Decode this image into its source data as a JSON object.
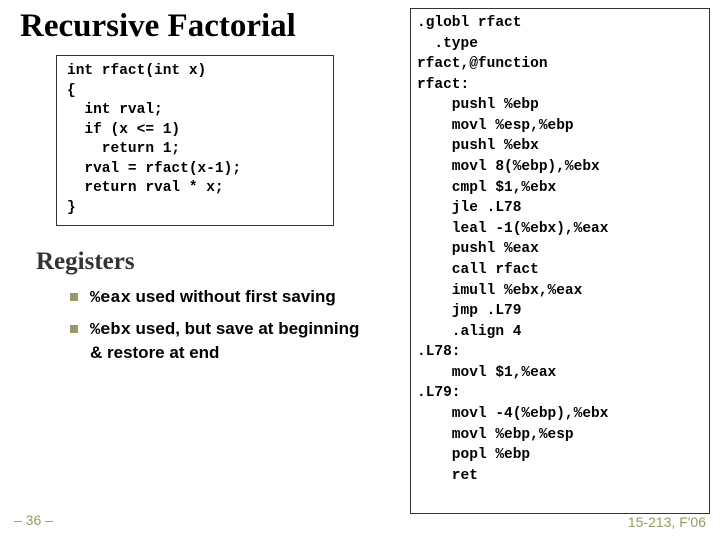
{
  "title": "Recursive Factorial",
  "c_code": "int rfact(int x)\n{\n  int rval;\n  if (x <= 1)\n    return 1;\n  rval = rfact(x-1);\n  return rval * x;\n}",
  "subhead": "Registers",
  "bullets": [
    {
      "code": "%eax",
      "rest": " used without first saving"
    },
    {
      "code": "%ebx",
      "rest": " used, but save at beginning & restore at end"
    }
  ],
  "asm_lines": [
    {
      "t": ".globl rfact",
      "indent": 0,
      "hl": null
    },
    {
      "t": "  .type",
      "indent": 0,
      "hl": null
    },
    {
      "t": "rfact,@function",
      "indent": 0,
      "hl": null
    },
    {
      "t": "rfact:",
      "indent": 0,
      "hl": null
    },
    {
      "t": "pushl %ebp",
      "indent": 1,
      "hl": null
    },
    {
      "t": "movl %esp,%ebp",
      "indent": 1,
      "hl": null
    },
    {
      "t": "pushl %ebx",
      "indent": 1,
      "hl": [
        32,
        104
      ]
    },
    {
      "t": "movl 8(%ebp),%ebx",
      "indent": 1,
      "hl": [
        150,
        40
      ]
    },
    {
      "t": "cmpl $1,%ebx",
      "indent": 1,
      "hl": null
    },
    {
      "t": "jle .L78",
      "indent": 1,
      "hl": null
    },
    {
      "t": "leal -1(%ebx),%eax",
      "indent": 1,
      "hl": [
        160,
        40
      ]
    },
    {
      "t": "pushl %eax",
      "indent": 1,
      "hl": null
    },
    {
      "t": "call rfact",
      "indent": 1,
      "hl": null
    },
    {
      "t": "imull %ebx,%eax",
      "indent": 1,
      "hl": null
    },
    {
      "t": "jmp .L79",
      "indent": 1,
      "hl": null
    },
    {
      "t": ".align 4",
      "indent": 1,
      "hl": null
    },
    {
      "t": ".L78:",
      "indent": 0,
      "hl": null
    },
    {
      "t": "movl $1,%eax",
      "indent": 1,
      "hl": null
    },
    {
      "t": ".L79:",
      "indent": 0,
      "hl": null
    },
    {
      "t": "movl -4(%ebp),%ebx",
      "indent": 1,
      "hl": [
        32,
        168
      ]
    },
    {
      "t": "movl %ebp,%esp",
      "indent": 1,
      "hl": null
    },
    {
      "t": "popl %ebp",
      "indent": 1,
      "hl": null
    },
    {
      "t": "ret",
      "indent": 1,
      "hl": null
    }
  ],
  "page_num": "– 36 –",
  "course": "15-213, F'06",
  "colors": {
    "highlight": "#ffff99",
    "bullet_marker": "#999966",
    "footer_text": "#999966"
  }
}
